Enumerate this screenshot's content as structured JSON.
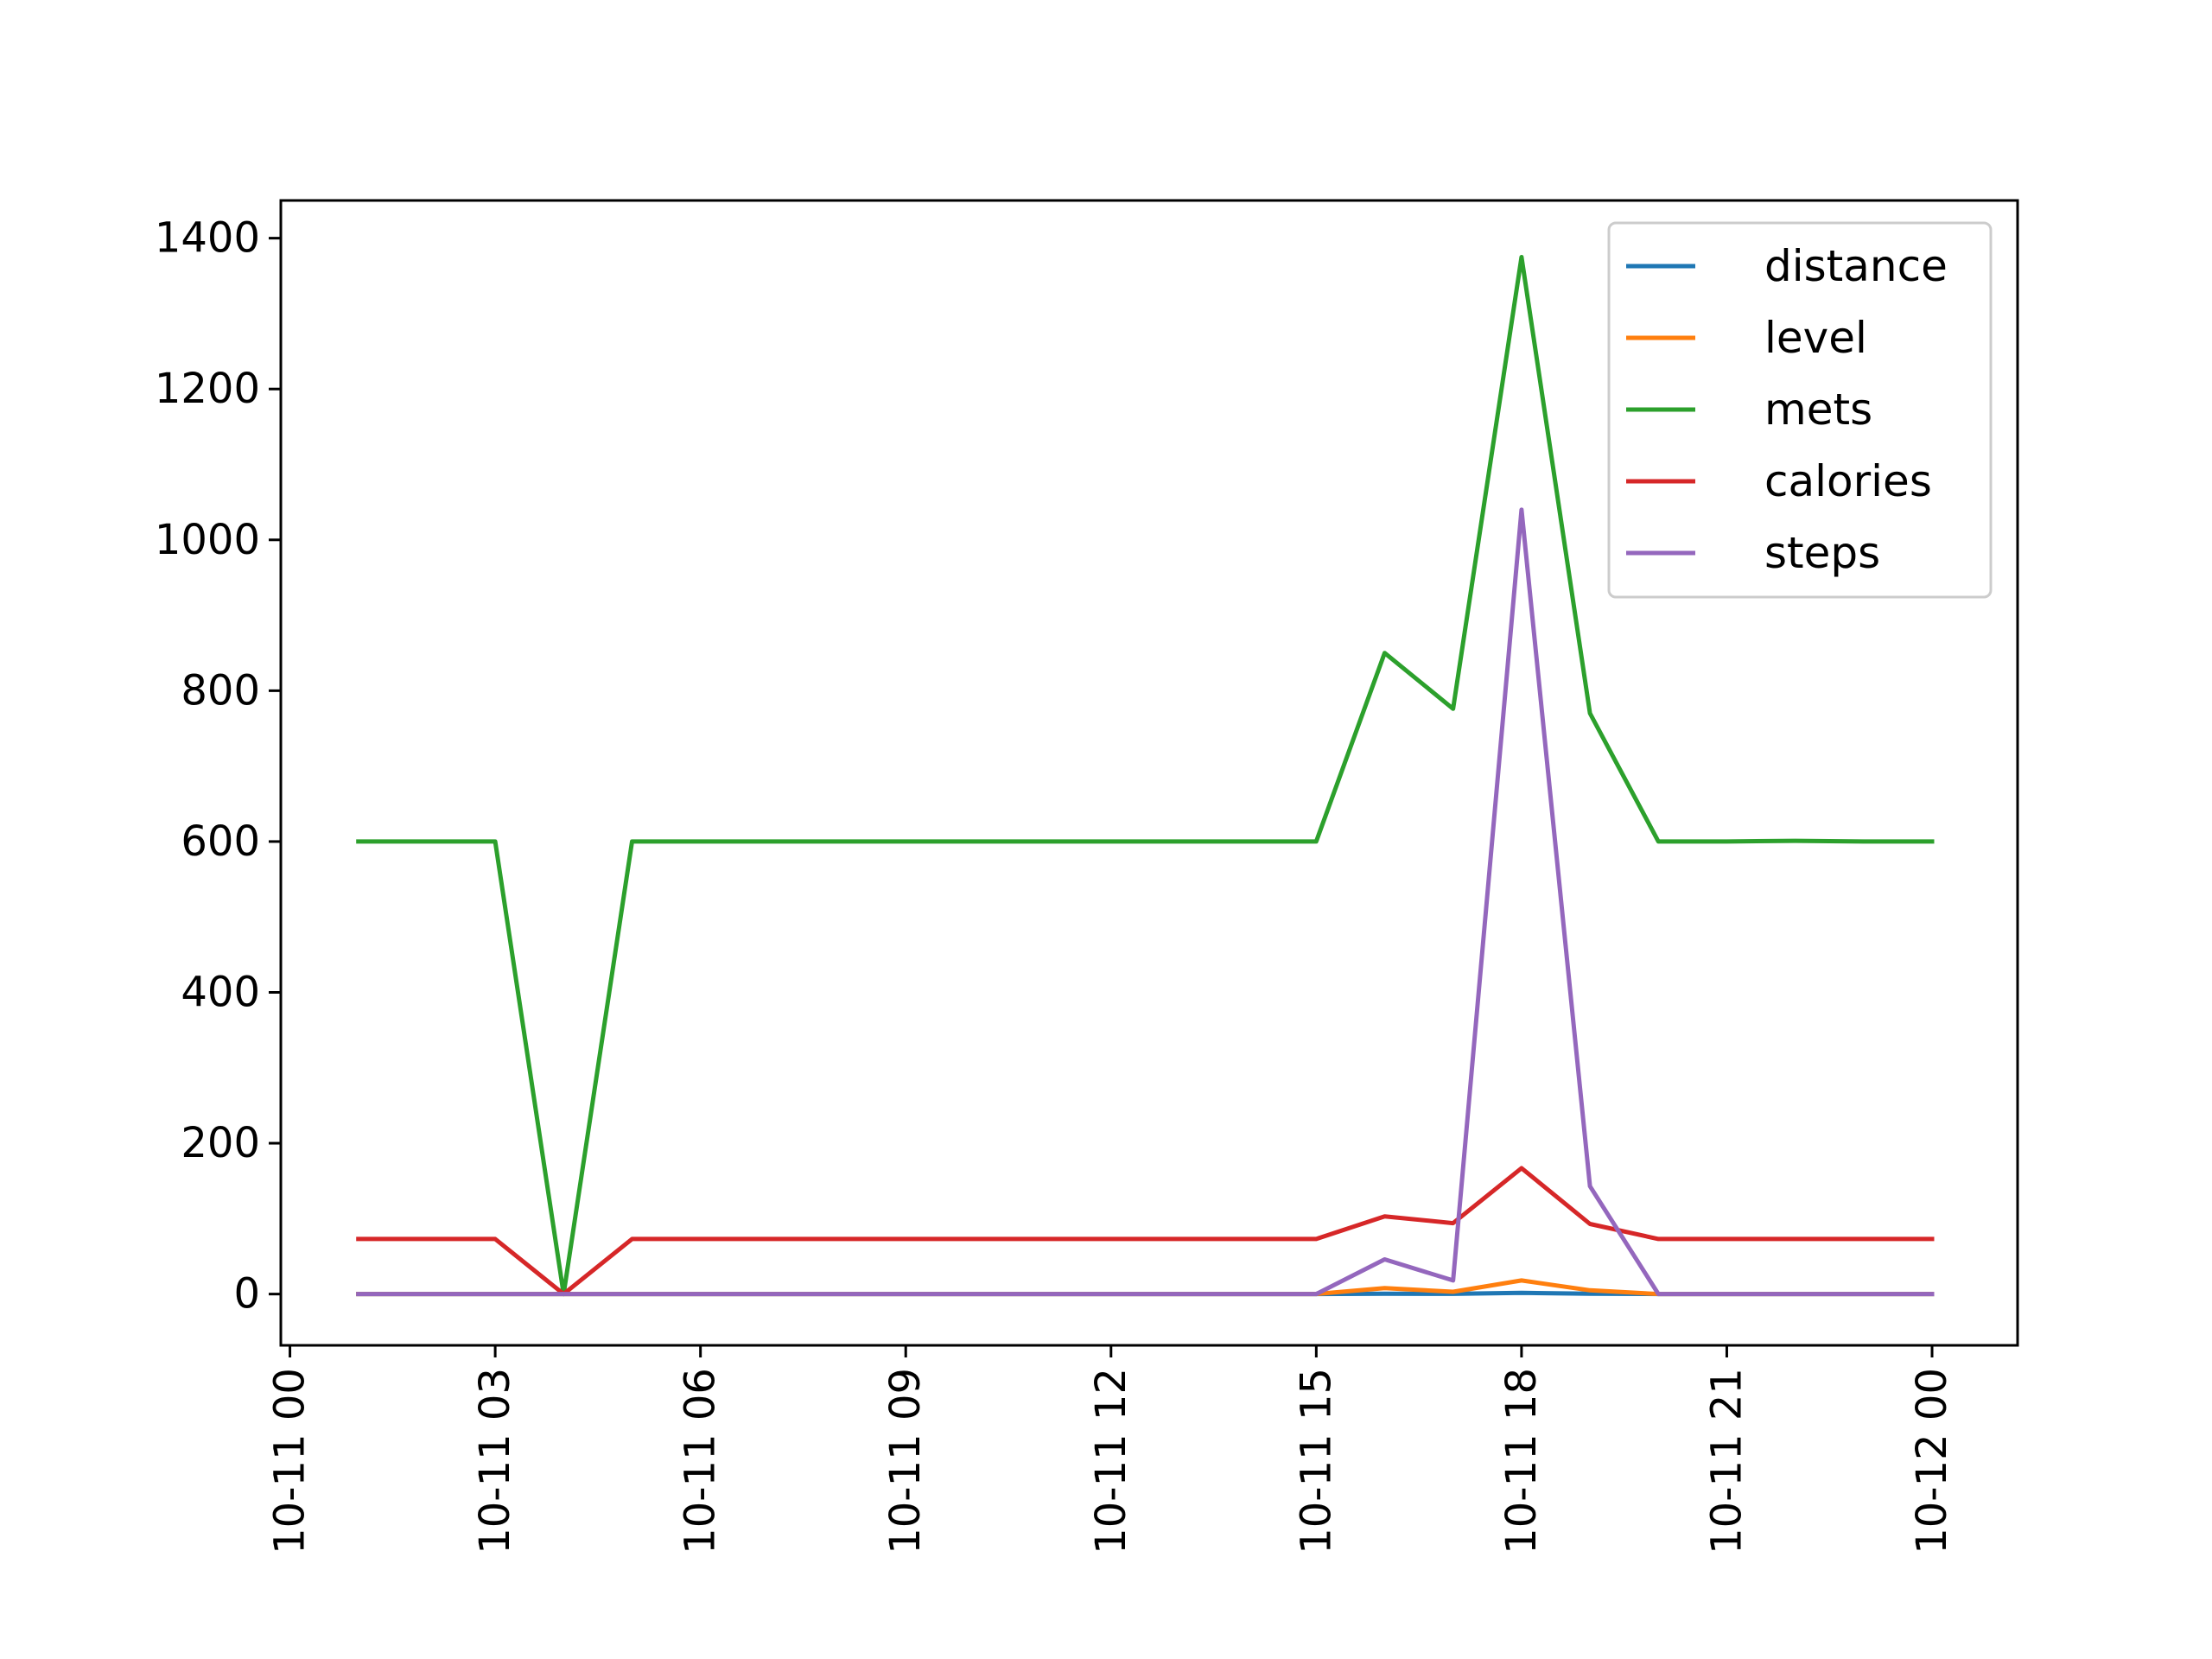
{
  "chart_data": {
    "type": "line",
    "title": "",
    "xlabel": "",
    "ylabel": "",
    "x": [
      "2015-10-11 01:00",
      "2015-10-11 02:00",
      "2015-10-11 03:00",
      "2015-10-11 04:00",
      "2015-10-11 05:00",
      "2015-10-11 06:00",
      "2015-10-11 07:00",
      "2015-10-11 08:00",
      "2015-10-11 09:00",
      "2015-10-11 10:00",
      "2015-10-11 11:00",
      "2015-10-11 12:00",
      "2015-10-11 13:00",
      "2015-10-11 14:00",
      "2015-10-11 15:00",
      "2015-10-11 16:00",
      "2015-10-11 17:00",
      "2015-10-11 18:00",
      "2015-10-11 19:00",
      "2015-10-11 20:00",
      "2015-10-11 21:00",
      "2015-10-11 22:00",
      "2015-10-11 23:00",
      "2015-10-12 00:00"
    ],
    "xlim": [
      "2015-10-10 23:52",
      "2015-10-12 01:15"
    ],
    "xticks": [
      "2015-10-11 00:00",
      "2015-10-11 03:00",
      "2015-10-11 06:00",
      "2015-10-11 09:00",
      "2015-10-11 12:00",
      "2015-10-11 15:00",
      "2015-10-11 18:00",
      "2015-10-11 21:00",
      "2015-10-12 00:00"
    ],
    "xtick_labels": [
      "10-11 00",
      "10-11 03",
      "10-11 06",
      "10-11 09",
      "10-11 12",
      "10-11 15",
      "10-11 18",
      "10-11 21",
      "10-12 00"
    ],
    "ylim": [
      -68,
      1450
    ],
    "yticks": [
      0,
      200,
      400,
      600,
      800,
      1000,
      1200,
      1400
    ],
    "ytick_labels": [
      "0",
      "200",
      "400",
      "600",
      "800",
      "1000",
      "1200",
      "1400"
    ],
    "grid": false,
    "legend_position": "top-right",
    "series": [
      {
        "name": "distance",
        "color": "#1f77b4",
        "values": [
          0,
          0,
          0,
          0,
          0,
          0,
          0,
          0,
          0,
          0,
          0,
          0,
          0,
          0,
          0,
          0.5,
          0.3,
          1.5,
          0.5,
          0,
          0,
          0,
          0,
          0
        ]
      },
      {
        "name": "level",
        "color": "#ff7f0e",
        "values": [
          0,
          0,
          0,
          0,
          0,
          0,
          0,
          0,
          0,
          0,
          0,
          0,
          0,
          0,
          0,
          8,
          3,
          18,
          5,
          0,
          0,
          0,
          0,
          0
        ]
      },
      {
        "name": "mets",
        "color": "#2ca02c",
        "values": [
          600,
          600,
          600,
          0,
          600,
          600,
          600,
          600,
          600,
          600,
          600,
          600,
          600,
          600,
          600,
          850,
          776,
          1375,
          770,
          600,
          600,
          601,
          600,
          600
        ]
      },
      {
        "name": "calories",
        "color": "#d62728",
        "values": [
          73,
          73,
          73,
          0,
          73,
          73,
          73,
          73,
          73,
          73,
          73,
          73,
          73,
          73,
          73,
          103,
          94,
          167,
          93,
          73,
          73,
          73,
          73,
          73
        ]
      },
      {
        "name": "steps",
        "color": "#9467bd",
        "values": [
          0,
          0,
          0,
          0,
          0,
          0,
          0,
          0,
          0,
          0,
          0,
          0,
          0,
          0,
          0,
          46,
          18,
          1040,
          143,
          0,
          0,
          0,
          0,
          0
        ]
      }
    ]
  }
}
